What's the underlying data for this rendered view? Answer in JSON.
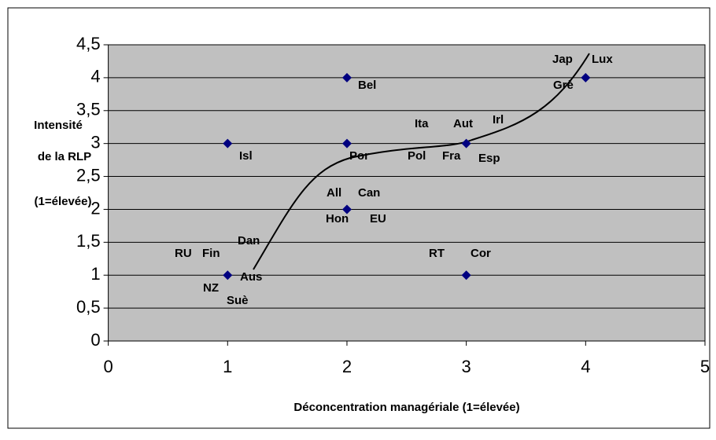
{
  "chart_data": {
    "type": "scatter",
    "x_label": "Déconcentration managériale (1=élevée)",
    "y_label": [
      "Intensité",
      "de la RLP",
      "(1=élevée)"
    ],
    "x": [
      1,
      2,
      2,
      3,
      4,
      2,
      1,
      3
    ],
    "values": [
      3,
      4,
      3,
      3,
      4,
      2,
      1,
      1
    ],
    "color": "#000080",
    "xlim": [
      0,
      5
    ],
    "xticks": [
      0,
      1,
      2,
      3,
      4,
      5
    ],
    "ylim": [
      0,
      4.5
    ],
    "yticks": [
      0,
      {
        "value": 0.5,
        "label": "0,5"
      },
      1,
      {
        "value": 1.5,
        "label": "1,5"
      },
      2,
      {
        "value": 2.5,
        "label": "2,5"
      },
      3,
      {
        "value": 3.5,
        "label": "3,5"
      },
      4,
      {
        "value": 4.5,
        "label": "4,5"
      }
    ],
    "grid": true,
    "annotations": [
      "RU",
      "Fin",
      "Dan",
      "Aus",
      "NZ",
      "Suè",
      "Isl",
      "Bel",
      "Por",
      "All",
      "Can",
      "Hon",
      "EU",
      "Ita",
      "Aut",
      "Irl",
      "Pol",
      "Fra",
      "Esp",
      "RT",
      "Cor",
      "Jap",
      "Lux",
      "Grè"
    ]
  }
}
